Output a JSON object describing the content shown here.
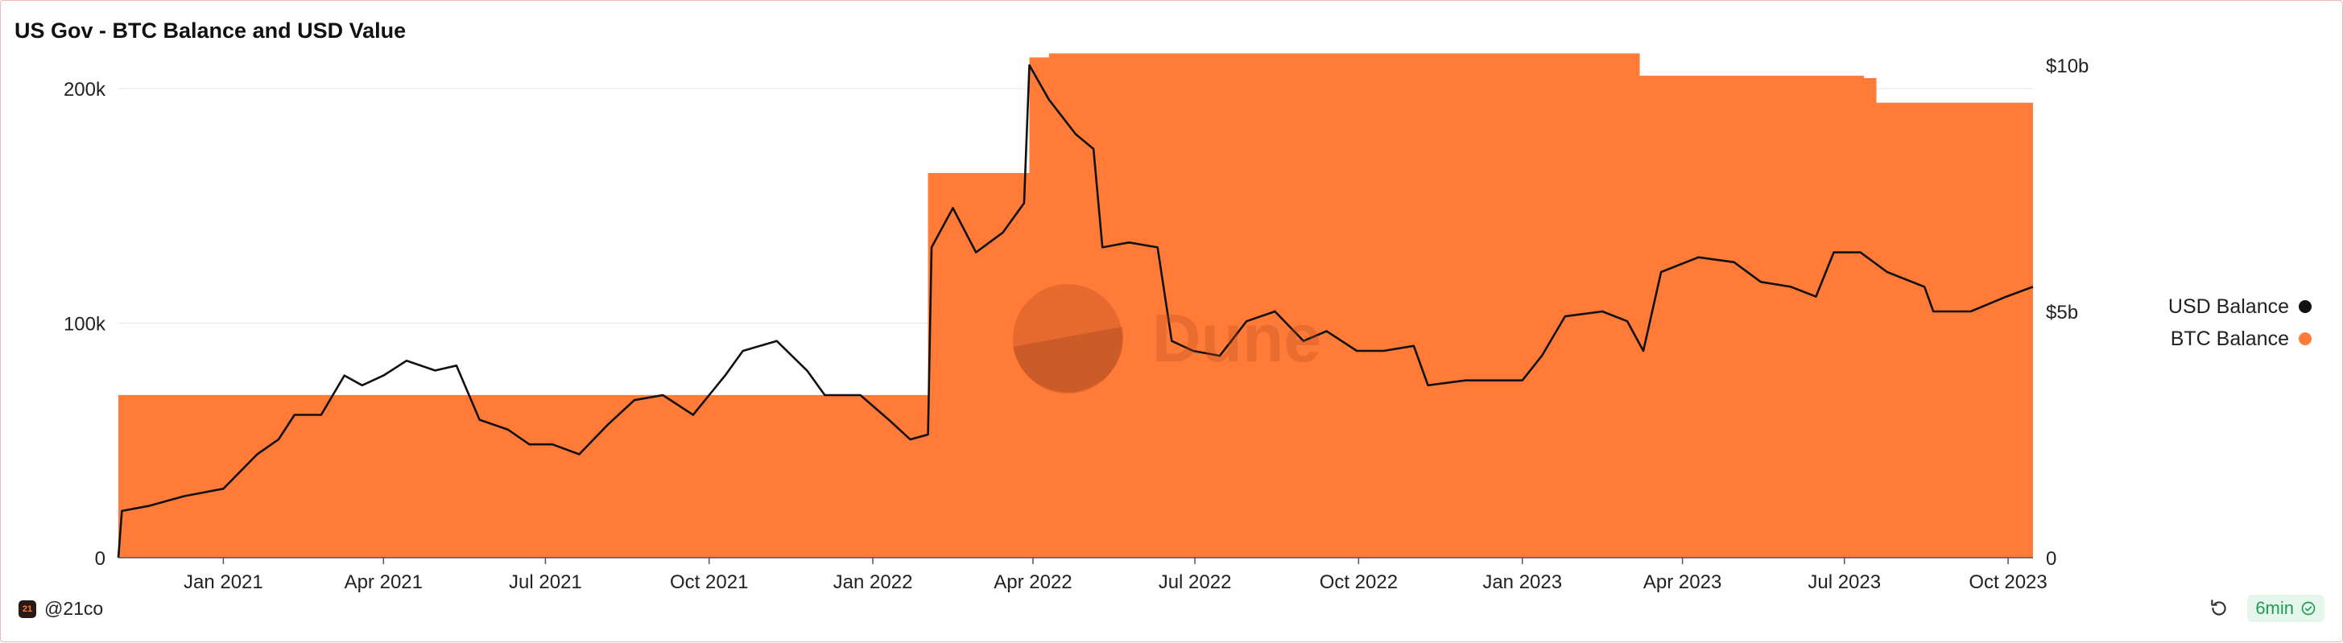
{
  "title": "US Gov - BTC Balance and USD Value",
  "author": "@21co",
  "author_avatar_text": "21",
  "watermark": "Dune",
  "refresh_age": "6min",
  "colors": {
    "btc_area": "#ff7b37",
    "usd_line": "#111111",
    "grid": "#e8e8e8",
    "tick_text": "#222222"
  },
  "icons": {
    "refresh": "refresh-icon",
    "fresh": "check-circle-icon"
  },
  "chart_data": {
    "type": "area+line",
    "title": "US Gov - BTC Balance and USD Value",
    "legend_position": "right",
    "grid": true,
    "x_range": [
      "2020-11-03",
      "2023-10-15"
    ],
    "x_ticks": [
      "Jan 2021",
      "Apr 2021",
      "Jul 2021",
      "Oct 2021",
      "Jan 2022",
      "Apr 2022",
      "Jul 2022",
      "Oct 2022",
      "Jan 2023",
      "Apr 2023",
      "Jul 2023",
      "Oct 2023"
    ],
    "y_left": {
      "ticks": [
        "0",
        "100k",
        "200k"
      ],
      "range": [
        0,
        210000
      ]
    },
    "y_right": {
      "ticks": [
        "0",
        "$5b",
        "$10b"
      ],
      "range": [
        0,
        10000000000
      ]
    },
    "series": [
      {
        "name": "USD Balance",
        "type": "line",
        "axis": "right",
        "color": "#111111",
        "points": [
          [
            "2020-11-03",
            0
          ],
          [
            "2020-11-05",
            950000000.0
          ],
          [
            "2020-11-20",
            1050000000.0
          ],
          [
            "2020-12-10",
            1250000000.0
          ],
          [
            "2021-01-01",
            1400000000.0
          ],
          [
            "2021-01-20",
            2100000000.0
          ],
          [
            "2021-02-01",
            2400000000.0
          ],
          [
            "2021-02-10",
            2900000000.0
          ],
          [
            "2021-02-25",
            2900000000.0
          ],
          [
            "2021-03-10",
            3700000000.0
          ],
          [
            "2021-03-20",
            3500000000.0
          ],
          [
            "2021-04-01",
            3700000000.0
          ],
          [
            "2021-04-14",
            4000000000.0
          ],
          [
            "2021-04-30",
            3800000000.0
          ],
          [
            "2021-05-12",
            3900000000.0
          ],
          [
            "2021-05-25",
            2800000000.0
          ],
          [
            "2021-06-10",
            2600000000.0
          ],
          [
            "2021-06-22",
            2300000000.0
          ],
          [
            "2021-07-05",
            2300000000.0
          ],
          [
            "2021-07-20",
            2100000000.0
          ],
          [
            "2021-08-05",
            2700000000.0
          ],
          [
            "2021-08-20",
            3200000000.0
          ],
          [
            "2021-09-05",
            3300000000.0
          ],
          [
            "2021-09-22",
            2900000000.0
          ],
          [
            "2021-10-10",
            3700000000.0
          ],
          [
            "2021-10-20",
            4200000000.0
          ],
          [
            "2021-11-08",
            4400000000.0
          ],
          [
            "2021-11-25",
            3800000000.0
          ],
          [
            "2021-12-05",
            3300000000.0
          ],
          [
            "2021-12-25",
            3300000000.0
          ],
          [
            "2022-01-10",
            2800000000.0
          ],
          [
            "2022-01-22",
            2400000000.0
          ],
          [
            "2022-02-01",
            2500000000.0
          ],
          [
            "2022-02-03",
            6300000000.0
          ],
          [
            "2022-02-15",
            7100000000.0
          ],
          [
            "2022-02-28",
            6200000000.0
          ],
          [
            "2022-03-15",
            6600000000.0
          ],
          [
            "2022-03-27",
            7200000000.0
          ],
          [
            "2022-03-30",
            10000000000.0
          ],
          [
            "2022-04-10",
            9300000000.0
          ],
          [
            "2022-04-25",
            8600000000.0
          ],
          [
            "2022-05-05",
            8300000000.0
          ],
          [
            "2022-05-10",
            6300000000.0
          ],
          [
            "2022-05-25",
            6400000000.0
          ],
          [
            "2022-06-10",
            6300000000.0
          ],
          [
            "2022-06-18",
            4400000000.0
          ],
          [
            "2022-06-30",
            4200000000.0
          ],
          [
            "2022-07-15",
            4100000000.0
          ],
          [
            "2022-07-30",
            4800000000.0
          ],
          [
            "2022-08-15",
            5000000000.0
          ],
          [
            "2022-08-31",
            4400000000.0
          ],
          [
            "2022-09-13",
            4600000000.0
          ],
          [
            "2022-09-30",
            4200000000.0
          ],
          [
            "2022-10-15",
            4200000000.0
          ],
          [
            "2022-11-01",
            4300000000.0
          ],
          [
            "2022-11-09",
            3500000000.0
          ],
          [
            "2022-11-30",
            3600000000.0
          ],
          [
            "2022-12-15",
            3600000000.0
          ],
          [
            "2023-01-01",
            3600000000.0
          ],
          [
            "2023-01-12",
            4100000000.0
          ],
          [
            "2023-01-25",
            4900000000.0
          ],
          [
            "2023-02-15",
            5000000000.0
          ],
          [
            "2023-03-01",
            4800000000.0
          ],
          [
            "2023-03-10",
            4200000000.0
          ],
          [
            "2023-03-20",
            5800000000.0
          ],
          [
            "2023-04-10",
            6100000000.0
          ],
          [
            "2023-04-30",
            6000000000.0
          ],
          [
            "2023-05-15",
            5600000000.0
          ],
          [
            "2023-06-01",
            5500000000.0
          ],
          [
            "2023-06-15",
            5300000000.0
          ],
          [
            "2023-06-25",
            6200000000.0
          ],
          [
            "2023-07-10",
            6200000000.0
          ],
          [
            "2023-07-25",
            5800000000.0
          ],
          [
            "2023-08-15",
            5500000000.0
          ],
          [
            "2023-08-20",
            5000000000.0
          ],
          [
            "2023-09-10",
            5000000000.0
          ],
          [
            "2023-09-30",
            5300000000.0
          ],
          [
            "2023-10-15",
            5500000000.0
          ]
        ]
      },
      {
        "name": "BTC Balance",
        "type": "area-step",
        "axis": "left",
        "color": "#ff7b37",
        "points": [
          [
            "2020-11-03",
            69370
          ],
          [
            "2022-02-01",
            164000
          ],
          [
            "2022-03-30",
            213300
          ],
          [
            "2022-04-10",
            215000
          ],
          [
            "2023-03-08",
            205500
          ],
          [
            "2023-07-12",
            204500
          ],
          [
            "2023-07-19",
            194000
          ],
          [
            "2023-10-15",
            194000
          ]
        ]
      }
    ]
  }
}
